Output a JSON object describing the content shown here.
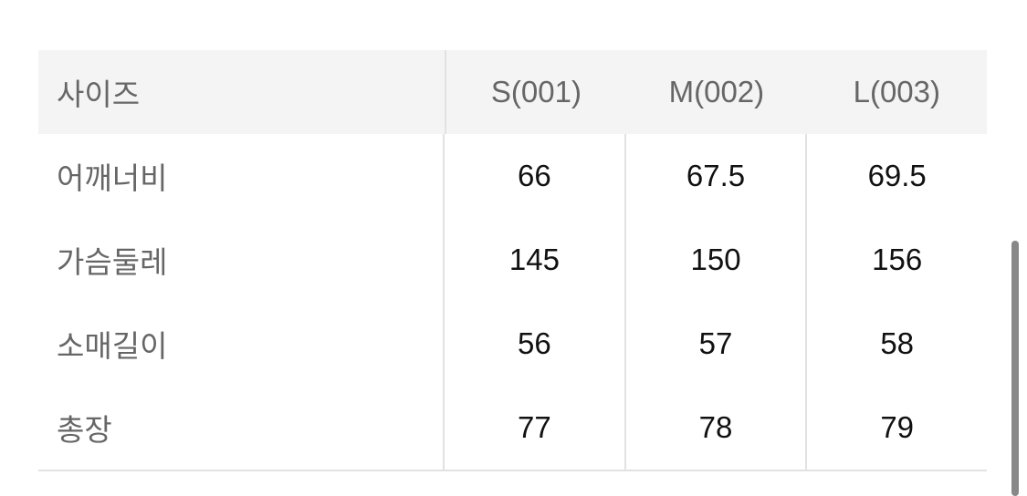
{
  "table": {
    "headers": [
      "사이즈",
      "S(001)",
      "M(002)",
      "L(003)"
    ],
    "rows": [
      {
        "label": "어깨너비",
        "values": [
          "66",
          "67.5",
          "69.5"
        ]
      },
      {
        "label": "가슴둘레",
        "values": [
          "145",
          "150",
          "156"
        ]
      },
      {
        "label": "소매길이",
        "values": [
          "56",
          "57",
          "58"
        ]
      },
      {
        "label": "총장",
        "values": [
          "77",
          "78",
          "79"
        ]
      }
    ]
  }
}
